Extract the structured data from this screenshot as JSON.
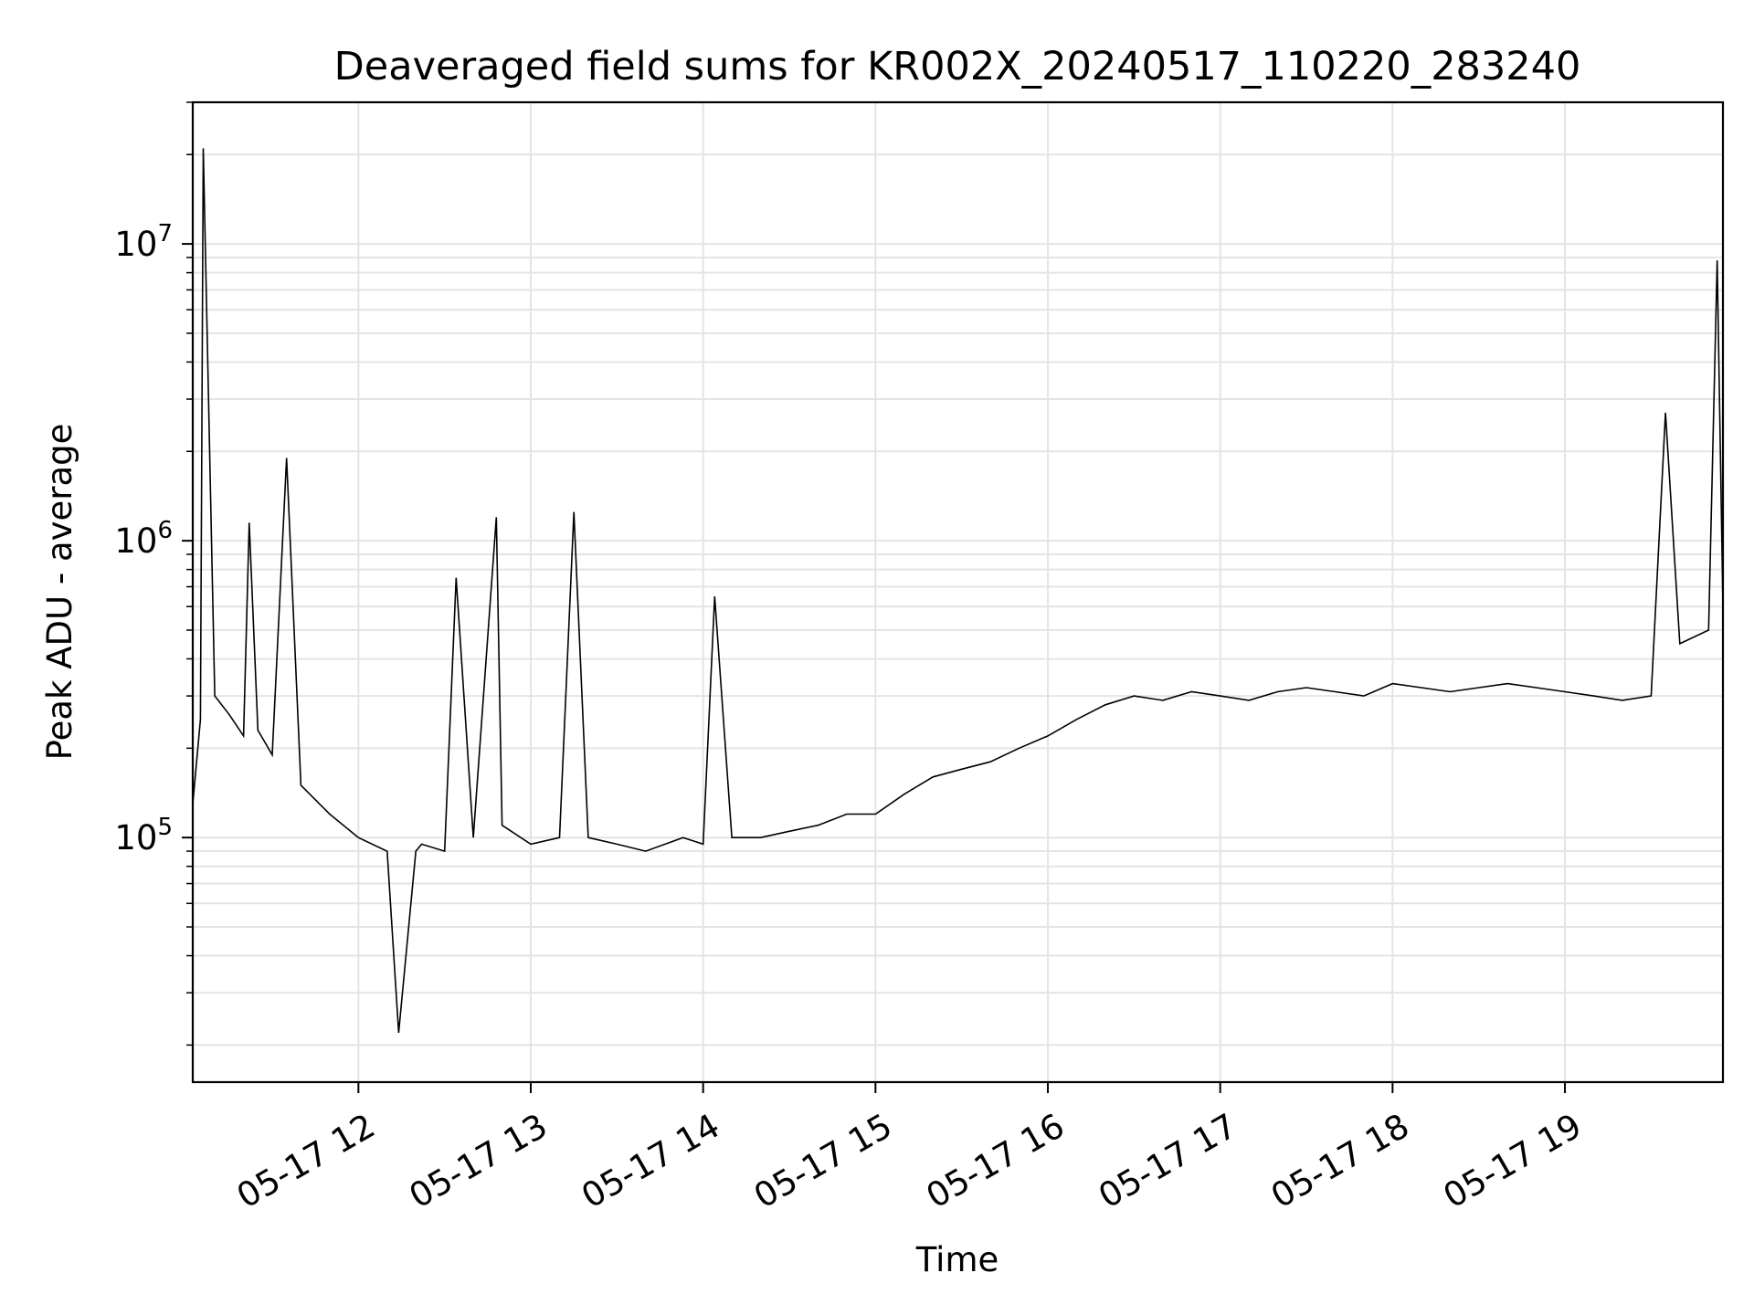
{
  "chart_data": {
    "type": "line",
    "title": "Deaveraged field sums for KR002X_20240517_110220_283240",
    "xlabel": "Time",
    "ylabel": "Peak ADU - average",
    "yscale": "log",
    "ylim": [
      15000,
      30000000
    ],
    "xlim": [
      "2024-05-17 11:02:20",
      "2024-05-17 19:55:00"
    ],
    "grid": true,
    "line_color": "#000000",
    "x_ticks": [
      {
        "time": "2024-05-17 12:00",
        "label": "05-17 12"
      },
      {
        "time": "2024-05-17 13:00",
        "label": "05-17 13"
      },
      {
        "time": "2024-05-17 14:00",
        "label": "05-17 14"
      },
      {
        "time": "2024-05-17 15:00",
        "label": "05-17 15"
      },
      {
        "time": "2024-05-17 16:00",
        "label": "05-17 16"
      },
      {
        "time": "2024-05-17 17:00",
        "label": "05-17 17"
      },
      {
        "time": "2024-05-17 18:00",
        "label": "05-17 18"
      },
      {
        "time": "2024-05-17 19:00",
        "label": "05-17 19"
      }
    ],
    "y_ticks": [
      {
        "value": 100000,
        "base": "10",
        "exp": "5"
      },
      {
        "value": 1000000,
        "base": "10",
        "exp": "6"
      },
      {
        "value": 10000000,
        "base": "10",
        "exp": "7"
      }
    ],
    "series": [
      {
        "x": [
          "2024-05-17 11:02",
          "2024-05-17 11:05",
          "2024-05-17 11:06",
          "2024-05-17 11:10",
          "2024-05-17 11:15",
          "2024-05-17 11:20",
          "2024-05-17 11:22",
          "2024-05-17 11:25",
          "2024-05-17 11:30",
          "2024-05-17 11:35",
          "2024-05-17 11:40",
          "2024-05-17 11:50",
          "2024-05-17 12:00",
          "2024-05-17 12:10",
          "2024-05-17 12:14",
          "2024-05-17 12:20",
          "2024-05-17 12:22",
          "2024-05-17 12:30",
          "2024-05-17 12:34",
          "2024-05-17 12:40",
          "2024-05-17 12:48",
          "2024-05-17 12:50",
          "2024-05-17 13:00",
          "2024-05-17 13:10",
          "2024-05-17 13:15",
          "2024-05-17 13:20",
          "2024-05-17 13:30",
          "2024-05-17 13:40",
          "2024-05-17 13:53",
          "2024-05-17 14:00",
          "2024-05-17 14:04",
          "2024-05-17 14:10",
          "2024-05-17 14:20",
          "2024-05-17 14:30",
          "2024-05-17 14:40",
          "2024-05-17 14:50",
          "2024-05-17 15:00",
          "2024-05-17 15:10",
          "2024-05-17 15:20",
          "2024-05-17 15:30",
          "2024-05-17 15:40",
          "2024-05-17 15:50",
          "2024-05-17 16:00",
          "2024-05-17 16:10",
          "2024-05-17 16:20",
          "2024-05-17 16:30",
          "2024-05-17 16:40",
          "2024-05-17 16:50",
          "2024-05-17 17:00",
          "2024-05-17 17:10",
          "2024-05-17 17:20",
          "2024-05-17 17:30",
          "2024-05-17 17:40",
          "2024-05-17 17:50",
          "2024-05-17 18:00",
          "2024-05-17 18:10",
          "2024-05-17 18:20",
          "2024-05-17 18:30",
          "2024-05-17 18:40",
          "2024-05-17 18:50",
          "2024-05-17 19:00",
          "2024-05-17 19:10",
          "2024-05-17 19:20",
          "2024-05-17 19:30",
          "2024-05-17 19:35",
          "2024-05-17 19:40",
          "2024-05-17 19:50",
          "2024-05-17 19:53",
          "2024-05-17 19:55"
        ],
        "values": [
          120000,
          250000,
          21000000,
          300000,
          260000,
          220000,
          1150000,
          230000,
          190000,
          1900000,
          150000,
          120000,
          100000,
          90000,
          22000,
          90000,
          95000,
          90000,
          750000,
          100000,
          1200000,
          110000,
          95000,
          100000,
          1250000,
          100000,
          95000,
          90000,
          100000,
          95000,
          650000,
          100000,
          100000,
          105000,
          110000,
          120000,
          120000,
          140000,
          160000,
          170000,
          180000,
          200000,
          220000,
          250000,
          280000,
          300000,
          290000,
          310000,
          300000,
          290000,
          310000,
          320000,
          310000,
          300000,
          330000,
          320000,
          310000,
          320000,
          330000,
          320000,
          310000,
          300000,
          290000,
          300000,
          2700000,
          450000,
          500000,
          8800000,
          600000
        ]
      }
    ]
  }
}
